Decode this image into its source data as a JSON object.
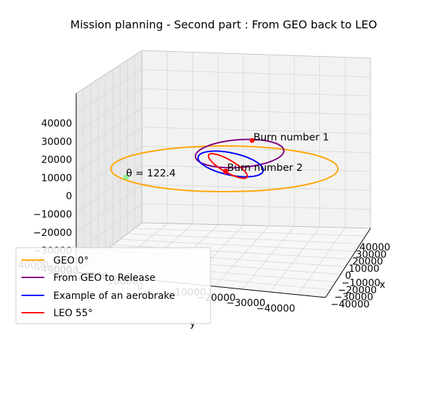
{
  "chart_data": {
    "type": "line",
    "projection": "3d",
    "title": "Mission planning - Second part : From GEO back to LEO",
    "xlabel": "x",
    "ylabel": "y",
    "zlabel": "",
    "x_ticks": [
      "40000",
      "30000",
      "20000",
      "10000",
      "0",
      "−10000",
      "−20000",
      "−30000",
      "−40000"
    ],
    "y_ticks": [
      "40000",
      "30000",
      "20000",
      "10000",
      "0",
      "−10000",
      "−20000",
      "−30000",
      "−40000"
    ],
    "z_ticks": [
      "40000",
      "30000",
      "20000",
      "10000",
      "0",
      "−10000",
      "−20000",
      "−30000",
      "−40000"
    ],
    "xlim": [
      -42164,
      42164
    ],
    "ylim": [
      -42164,
      42164
    ],
    "zlim": [
      -42164,
      42164
    ],
    "grid": true,
    "legend_position": "lower-left",
    "series": [
      {
        "name": "GEO 0°",
        "color": "#ffa500",
        "semi_major_axis_km": 42164,
        "eccentricity": 0,
        "inclination_deg": 0
      },
      {
        "name": "From GEO to Release",
        "color": "#800080",
        "semi_major_axis_km": 24300,
        "eccentricity": 0.73,
        "inclination_deg": 0
      },
      {
        "name": "Example of an aerobrake",
        "color": "#0000ff",
        "semi_major_axis_km": 16000,
        "eccentricity": 0.6,
        "inclination_deg": 30
      },
      {
        "name": "LEO 55°",
        "color": "#ff0000",
        "semi_major_axis_km": 6700,
        "eccentricity": 0,
        "inclination_deg": 55
      }
    ],
    "points": [
      {
        "label": "Burn number 1",
        "color": "#ff0000"
      },
      {
        "label": "Burn number 2",
        "color": "#ff0000"
      },
      {
        "label": "θ = 122.4",
        "color": "#90ee90"
      }
    ]
  }
}
